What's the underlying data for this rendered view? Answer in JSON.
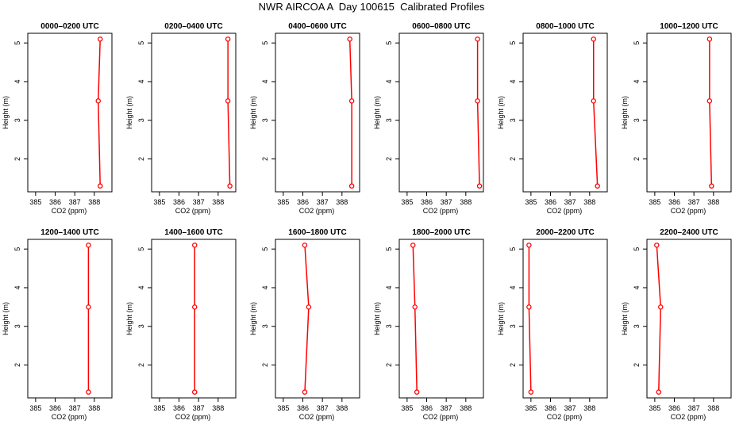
{
  "figure": {
    "title": "NWR AIRCOA A  Day 100615  Calibrated Profiles"
  },
  "colors": {
    "profile": "#ff0000",
    "axis": "#000000"
  },
  "axes_common": {
    "xlabel": "CO2 (ppm)",
    "ylabel": "Height (m)",
    "x_ticks": [
      385,
      386,
      387,
      388
    ],
    "y_ticks": [
      2,
      3,
      4,
      5
    ],
    "xlim": [
      384.6,
      388.9
    ],
    "ylim": [
      1.15,
      5.25
    ]
  },
  "chart_data": [
    {
      "type": "line",
      "title": "0000–0200 UTC",
      "xlabel": "CO2 (ppm)",
      "ylabel": "Height (m)",
      "x": [
        388.3,
        388.2,
        388.3
      ],
      "y": [
        5.1,
        3.5,
        1.3
      ]
    },
    {
      "type": "line",
      "title": "0200–0400 UTC",
      "xlabel": "CO2 (ppm)",
      "ylabel": "Height (m)",
      "x": [
        388.5,
        388.5,
        388.6
      ],
      "y": [
        5.1,
        3.5,
        1.3
      ]
    },
    {
      "type": "line",
      "title": "0400–0600 UTC",
      "xlabel": "CO2 (ppm)",
      "ylabel": "Height (m)",
      "x": [
        388.4,
        388.5,
        388.5
      ],
      "y": [
        5.1,
        3.5,
        1.3
      ]
    },
    {
      "type": "line",
      "title": "0600–0800 UTC",
      "xlabel": "CO2 (ppm)",
      "ylabel": "Height (m)",
      "x": [
        388.6,
        388.6,
        388.7
      ],
      "y": [
        5.1,
        3.5,
        1.3
      ]
    },
    {
      "type": "line",
      "title": "0800–1000 UTC",
      "xlabel": "CO2 (ppm)",
      "ylabel": "Height (m)",
      "x": [
        388.2,
        388.2,
        388.4
      ],
      "y": [
        5.1,
        3.5,
        1.3
      ]
    },
    {
      "type": "line",
      "title": "1000–1200 UTC",
      "xlabel": "CO2 (ppm)",
      "ylabel": "Height (m)",
      "x": [
        387.8,
        387.8,
        387.9
      ],
      "y": [
        5.1,
        3.5,
        1.3
      ]
    },
    {
      "type": "line",
      "title": "1200–1400 UTC",
      "xlabel": "CO2 (ppm)",
      "ylabel": "Height (m)",
      "x": [
        387.7,
        387.7,
        387.7
      ],
      "y": [
        5.1,
        3.5,
        1.3
      ]
    },
    {
      "type": "line",
      "title": "1400–1600 UTC",
      "xlabel": "CO2 (ppm)",
      "ylabel": "Height (m)",
      "x": [
        386.8,
        386.8,
        386.8
      ],
      "y": [
        5.1,
        3.5,
        1.3
      ]
    },
    {
      "type": "line",
      "title": "1600–1800 UTC",
      "xlabel": "CO2 (ppm)",
      "ylabel": "Height (m)",
      "x": [
        386.1,
        386.3,
        386.1
      ],
      "y": [
        5.1,
        3.5,
        1.3
      ]
    },
    {
      "type": "line",
      "title": "1800–2000 UTC",
      "xlabel": "CO2 (ppm)",
      "ylabel": "Height (m)",
      "x": [
        385.3,
        385.4,
        385.5
      ],
      "y": [
        5.1,
        3.5,
        1.3
      ]
    },
    {
      "type": "line",
      "title": "2000–2200 UTC",
      "xlabel": "CO2 (ppm)",
      "ylabel": "Height (m)",
      "x": [
        384.9,
        384.9,
        385.0
      ],
      "y": [
        5.1,
        3.5,
        1.3
      ]
    },
    {
      "type": "line",
      "title": "2200–2400 UTC",
      "xlabel": "CO2 (ppm)",
      "ylabel": "Height (m)",
      "x": [
        385.1,
        385.3,
        385.2
      ],
      "y": [
        5.1,
        3.5,
        1.3
      ]
    }
  ]
}
